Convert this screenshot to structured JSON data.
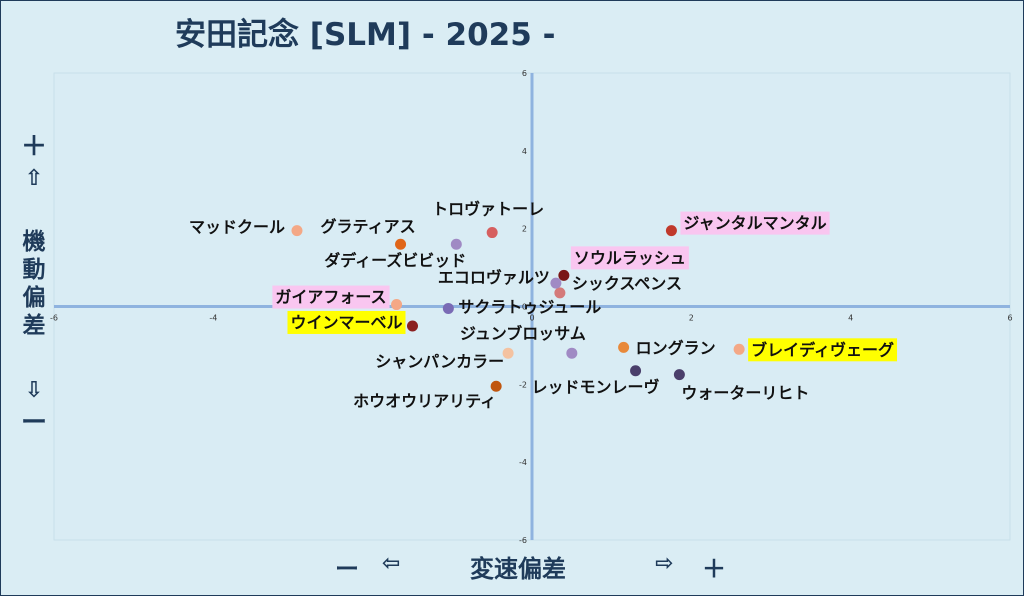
{
  "title": "安田記念 [SLM]  - 2025 -",
  "y_axis": {
    "plus": "＋",
    "up_arrow": "⇧",
    "label": "機動偏差",
    "down_arrow": "⇩",
    "minus": "ー"
  },
  "x_axis": {
    "minus": "ー",
    "left_arrow": "⇦",
    "label": "変速偏差",
    "right_arrow": "⇨",
    "plus": "＋"
  },
  "chart_data": {
    "type": "scatter",
    "title": "安田記念 [SLM]  - 2025 -",
    "xlabel": "変速偏差",
    "ylabel": "機動偏差",
    "xlim": [
      -6,
      6
    ],
    "ylim": [
      -6,
      6
    ],
    "xticks": [
      -6,
      -4,
      -2,
      0,
      2,
      4,
      6
    ],
    "yticks": [
      -6,
      -4,
      -2,
      0,
      2,
      4,
      6
    ],
    "grid": false,
    "points": [
      {
        "name": "ジャンタルマンタル",
        "x": 1.75,
        "y": 1.95,
        "color": "#c0392b",
        "highlight": "#f9c6f0"
      },
      {
        "name": "ソウルラッシュ",
        "x": 0.4,
        "y": 0.8,
        "color": "#7a1616",
        "highlight": "#f9c6f0"
      },
      {
        "name": "シックスペンス",
        "x": 0.35,
        "y": 0.35,
        "color": "#d47a7a",
        "highlight": ""
      },
      {
        "name": "エコロヴァルツ",
        "x": 0.3,
        "y": 0.6,
        "color": "#a08ac4",
        "highlight": ""
      },
      {
        "name": "トロヴァトーレ",
        "x": -0.5,
        "y": 1.9,
        "color": "#d65f5f",
        "highlight": ""
      },
      {
        "name": "ダディーズビビッド",
        "x": -0.95,
        "y": 1.6,
        "color": "#a08ac4",
        "highlight": ""
      },
      {
        "name": "マッドクール",
        "x": -2.95,
        "y": 1.95,
        "color": "#f4a886",
        "highlight": ""
      },
      {
        "name": "グラティアス",
        "x": -1.65,
        "y": 1.6,
        "color": "#e06518",
        "highlight": ""
      },
      {
        "name": "ガイアフォース",
        "x": -1.7,
        "y": 0.05,
        "color": "#f4a886",
        "highlight": "#f9c6f0"
      },
      {
        "name": "サクラトゥジュール",
        "x": -1.05,
        "y": -0.05,
        "color": "#7a6bb5",
        "highlight": ""
      },
      {
        "name": "ウインマーベル",
        "x": -1.5,
        "y": -0.5,
        "color": "#8b2020",
        "highlight": "#ffff00"
      },
      {
        "name": "ジュンブロッサム",
        "x": 0.5,
        "y": -1.2,
        "color": "#a08ac4",
        "highlight": ""
      },
      {
        "name": "シャンパンカラー",
        "x": -0.3,
        "y": -1.2,
        "color": "#f4c2a0",
        "highlight": ""
      },
      {
        "name": "ホウオウリアリティ",
        "x": -0.45,
        "y": -2.05,
        "color": "#c0560f",
        "highlight": ""
      },
      {
        "name": "ロングラン",
        "x": 1.15,
        "y": -1.05,
        "color": "#e8893a",
        "highlight": ""
      },
      {
        "name": "ブレイディヴェーグ",
        "x": 2.6,
        "y": -1.1,
        "color": "#f4a886",
        "highlight": "#ffff00"
      },
      {
        "name": "レッドモンレーヴ",
        "x": 1.3,
        "y": -1.65,
        "color": "#4a3f6b",
        "highlight": ""
      },
      {
        "name": "ウォーターリヒト",
        "x": 1.85,
        "y": -1.75,
        "color": "#4a3f6b",
        "highlight": ""
      }
    ]
  }
}
